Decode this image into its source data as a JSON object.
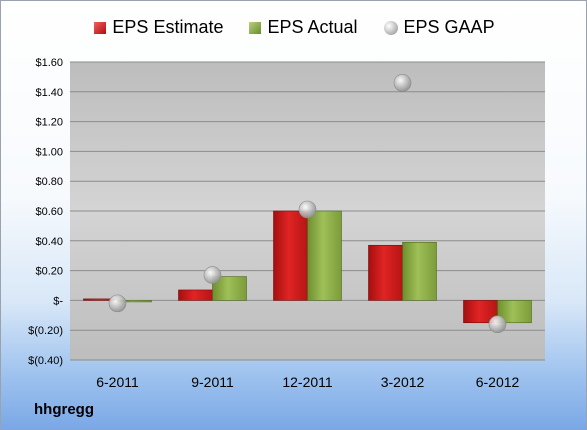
{
  "company": "hhgregg",
  "legend": {
    "estimate": "EPS Estimate",
    "actual": "EPS Actual",
    "gaap": "EPS GAAP"
  },
  "colors": {
    "estimate": "#cc1e1e",
    "actual": "#8cae48",
    "gaap": "#b5b5b5",
    "plot_bg": "#c8c8c8"
  },
  "chart_data": {
    "type": "bar",
    "categories": [
      "6-2011",
      "9-2011",
      "12-2011",
      "3-2012",
      "6-2012"
    ],
    "series": [
      {
        "name": "EPS Estimate",
        "values": [
          0.01,
          0.07,
          0.6,
          0.37,
          -0.15
        ]
      },
      {
        "name": "EPS Actual",
        "values": [
          -0.01,
          0.16,
          0.6,
          0.39,
          -0.15
        ]
      },
      {
        "name": "EPS GAAP",
        "values": [
          -0.02,
          0.17,
          0.61,
          1.46,
          -0.16
        ],
        "marker": "circle"
      }
    ],
    "ylim": [
      -0.4,
      1.6
    ],
    "yticks": [
      -0.4,
      -0.2,
      0,
      0.2,
      0.4,
      0.6,
      0.8,
      1.0,
      1.2,
      1.4,
      1.6
    ],
    "ytick_labels": [
      "$(0.40)",
      "$(0.20)",
      "$-",
      "$0.20",
      "$0.40",
      "$0.60",
      "$0.80",
      "$1.00",
      "$1.20",
      "$1.40",
      "$1.60"
    ],
    "grid": true,
    "legend_position": "top"
  }
}
